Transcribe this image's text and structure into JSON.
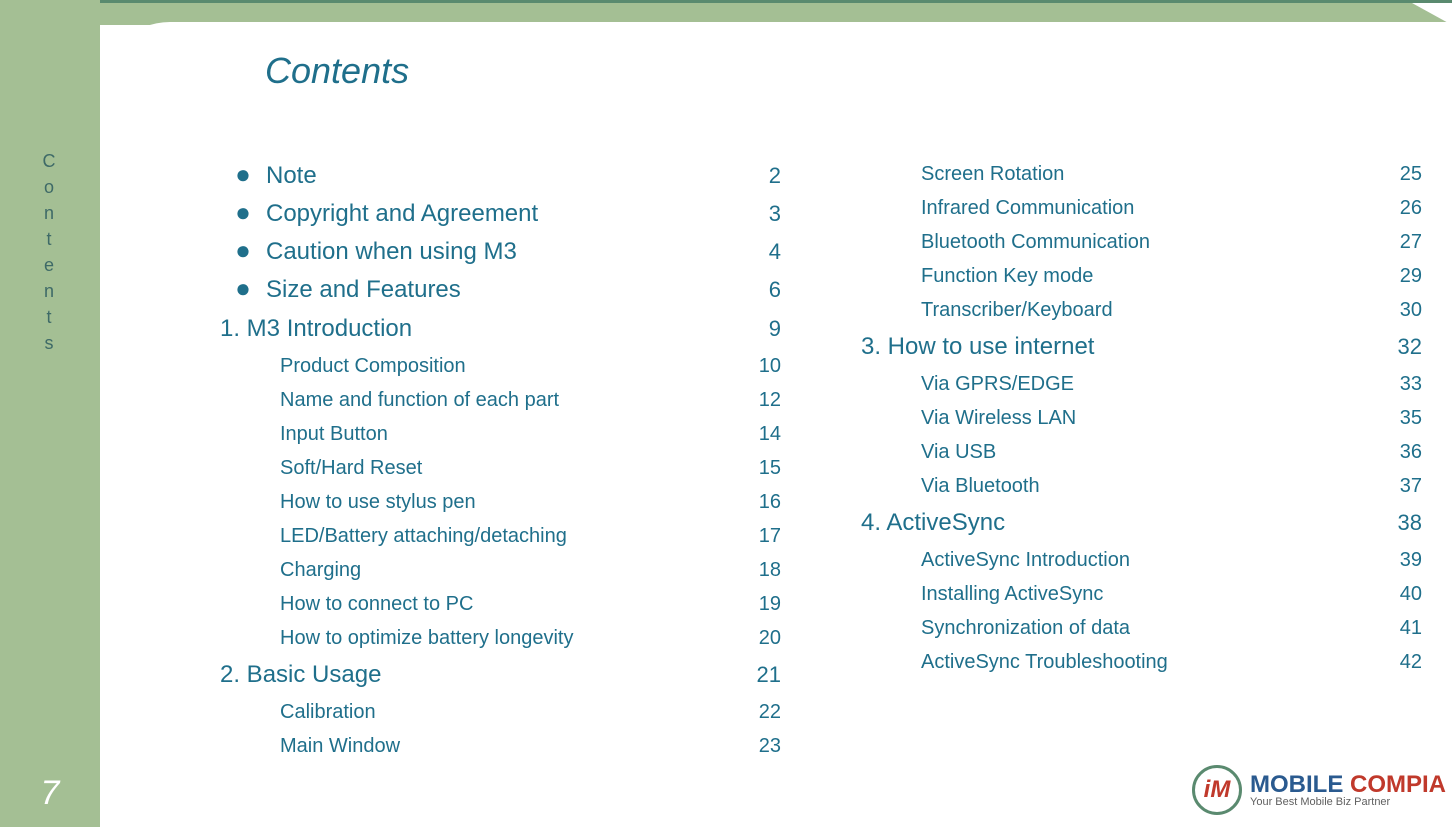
{
  "colors": {
    "sidebar_bg": "#a4bf94",
    "accent_border": "#5a8a6f",
    "text": "#1f6f8b",
    "side_text": "#3e6a67",
    "pagenum": "#ffffff",
    "logo_blue": "#2a5a8f",
    "logo_red": "#c0392b",
    "logo_tag": "#606060"
  },
  "page_number": "7",
  "side_label": "Contents",
  "title": "Contents",
  "logo": {
    "badge": "iM",
    "main_part1": "MOBILE ",
    "main_part2": "COMPIA",
    "tagline": "Your Best Mobile Biz Partner"
  },
  "col1": [
    {
      "level": "bullet",
      "label": "Note",
      "page": "2"
    },
    {
      "level": "bullet",
      "label": "Copyright and Agreement",
      "page": "3"
    },
    {
      "level": "bullet",
      "label": "Caution when using M3",
      "page": "4"
    },
    {
      "level": "bullet",
      "label": "Size and Features",
      "page": "6"
    },
    {
      "level": "section",
      "label": "1. M3 Introduction",
      "page": "9"
    },
    {
      "level": "sub",
      "label": "Product Composition",
      "page": "10"
    },
    {
      "level": "sub",
      "label": "Name and function of each part",
      "page": "12"
    },
    {
      "level": "sub",
      "label": "Input Button",
      "page": "14"
    },
    {
      "level": "sub",
      "label": "Soft/Hard Reset",
      "page": "15"
    },
    {
      "level": "sub",
      "label": "How to use stylus pen",
      "page": "16"
    },
    {
      "level": "sub",
      "label": "LED/Battery attaching/detaching",
      "page": "17"
    },
    {
      "level": "sub",
      "label": "Charging",
      "page": "18"
    },
    {
      "level": "sub",
      "label": "How to connect to PC",
      "page": "19"
    },
    {
      "level": "sub",
      "label": "How to optimize battery longevity",
      "page": "20"
    },
    {
      "level": "section",
      "label": "2. Basic Usage",
      "page": "21"
    },
    {
      "level": "sub",
      "label": "Calibration",
      "page": "22"
    },
    {
      "level": "sub",
      "label": "Main Window",
      "page": "23"
    }
  ],
  "col2": [
    {
      "level": "sub",
      "label": "Screen Rotation",
      "page": "25"
    },
    {
      "level": "sub",
      "label": "Infrared Communication",
      "page": "26"
    },
    {
      "level": "sub",
      "label": "Bluetooth Communication",
      "page": "27"
    },
    {
      "level": "sub",
      "label": "Function Key mode",
      "page": "29"
    },
    {
      "level": "sub",
      "label": "Transcriber/Keyboard",
      "page": "30"
    },
    {
      "level": "section",
      "label": "3. How to use internet",
      "page": "32"
    },
    {
      "level": "sub",
      "label": "Via GPRS/EDGE",
      "page": "33"
    },
    {
      "level": "sub",
      "label": "Via Wireless LAN",
      "page": "35"
    },
    {
      "level": "sub",
      "label": "Via USB",
      "page": "36"
    },
    {
      "level": "sub",
      "label": "Via Bluetooth",
      "page": "37"
    },
    {
      "level": "section",
      "label": "4. ActiveSync",
      "page": "38"
    },
    {
      "level": "sub",
      "label": "ActiveSync Introduction",
      "page": "39"
    },
    {
      "level": "sub",
      "label": "Installing ActiveSync",
      "page": "40"
    },
    {
      "level": "sub",
      "label": "Synchronization of data",
      "page": "41"
    },
    {
      "level": "sub",
      "label": "ActiveSync Troubleshooting",
      "page": "42"
    }
  ]
}
